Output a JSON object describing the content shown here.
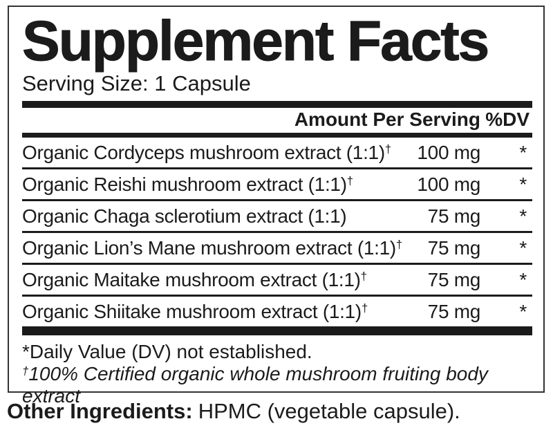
{
  "colors": {
    "ink": "#1b1b1b",
    "border": "#333333",
    "background": "#ffffff"
  },
  "panel": {
    "title": "Supplement Facts",
    "serving_size": "Serving Size: 1 Capsule",
    "columns": {
      "amount_header": "Amount Per Serving",
      "dv_header": "%DV"
    },
    "rows": [
      {
        "name": "Organic Cordyceps mushroom extract (1:1)",
        "dagger": "†",
        "amount": "100 mg",
        "dv": "*"
      },
      {
        "name": "Organic Reishi mushroom extract (1:1)",
        "dagger": "†",
        "amount": "100 mg",
        "dv": "*"
      },
      {
        "name": "Organic Chaga sclerotium extract (1:1)",
        "dagger": "",
        "amount": "75 mg",
        "dv": "*"
      },
      {
        "name": "Organic Lion’s Mane mushroom extract (1:1)",
        "dagger": "†",
        "amount": "75 mg",
        "dv": "*"
      },
      {
        "name": "Organic Maitake mushroom extract (1:1)",
        "dagger": "†",
        "amount": "75 mg",
        "dv": "*"
      },
      {
        "name": "Organic Shiitake mushroom extract (1:1)",
        "dagger": "†",
        "amount": "75 mg",
        "dv": "*"
      }
    ],
    "footnotes": {
      "dv_note": "*Daily Value (DV) not established.",
      "organic_note_symbol": "†",
      "organic_note_text": "100% Certified organic whole mushroom fruiting body extract"
    }
  },
  "other_ingredients": {
    "label": "Other Ingredients:",
    "text": "HPMC (vegetable capsule)."
  }
}
